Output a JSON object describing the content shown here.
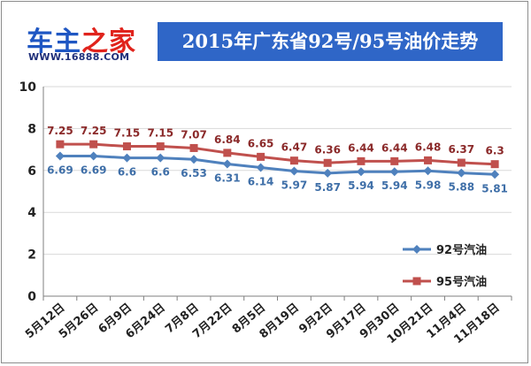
{
  "logo": {
    "name_part1": "车主",
    "name_part2": "之家",
    "url": "WWW.16888.COM"
  },
  "chart_data": {
    "type": "line",
    "title": "2015年广东省92号/95号油价走势",
    "xlabel": "",
    "ylabel": "",
    "ylim": [
      0,
      10
    ],
    "yticks": [
      0,
      2,
      4,
      6,
      8,
      10
    ],
    "grid": true,
    "legend": "right",
    "categories": [
      "5月12日",
      "5月26日",
      "6月9日",
      "6月24日",
      "7月8日",
      "7月22日",
      "8月5日",
      "8月19日",
      "9月2日",
      "9月17日",
      "9月30日",
      "10月21日",
      "11月4日",
      "11月18日"
    ],
    "series": [
      {
        "name": "92号汽油",
        "color": "#4f81bd",
        "marker": "diamond",
        "values": [
          6.69,
          6.69,
          6.6,
          6.6,
          6.53,
          6.31,
          6.14,
          5.97,
          5.87,
          5.94,
          5.94,
          5.98,
          5.88,
          5.81
        ],
        "labels": [
          "6.69",
          "6.69",
          "6.6",
          "6.6",
          "6.53",
          "6.31",
          "6.14",
          "5.97",
          "5.87",
          "5.94",
          "5.94",
          "5.98",
          "5.88",
          "5.81"
        ]
      },
      {
        "name": "95号汽油",
        "color": "#c0504d",
        "marker": "square",
        "values": [
          7.25,
          7.25,
          7.15,
          7.15,
          7.07,
          6.84,
          6.65,
          6.47,
          6.36,
          6.44,
          6.44,
          6.48,
          6.37,
          6.3
        ],
        "labels": [
          "7.25",
          "7.25",
          "7.15",
          "7.15",
          "7.07",
          "6.84",
          "6.65",
          "6.47",
          "6.36",
          "6.44",
          "6.44",
          "6.48",
          "6.37",
          "6.3"
        ]
      }
    ]
  }
}
